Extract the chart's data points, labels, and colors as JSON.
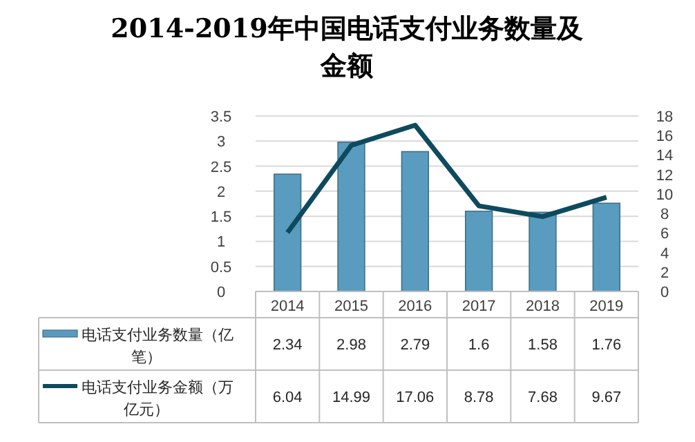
{
  "chart_data": {
    "type": "bar",
    "title": "2014-2019年中国电话支付业务数量及金额",
    "categories": [
      "2014",
      "2015",
      "2016",
      "2017",
      "2018",
      "2019"
    ],
    "series": [
      {
        "name": "电话支付业务数量（亿笔）",
        "color": "#5a9cbf",
        "values": [
          2.34,
          2.98,
          2.79,
          1.6,
          1.58,
          1.76
        ]
      },
      {
        "name": "电话支付业务金额（万亿元）",
        "type": "line",
        "axis": "y2",
        "color": "#0e4a5e",
        "values": [
          6.04,
          14.99,
          17.06,
          8.78,
          7.68,
          9.67
        ]
      }
    ],
    "ylim": [
      0,
      3.5
    ],
    "yticks": [
      0,
      0.5,
      1,
      1.5,
      2,
      2.5,
      3,
      3.5
    ],
    "y2lim": [
      0,
      18
    ],
    "y2ticks": [
      0,
      2,
      4,
      6,
      8,
      10,
      12,
      14,
      16,
      18
    ],
    "grid": "y",
    "legend": "bottom left",
    "data_labels": true,
    "marker": "none",
    "line_style": "solid"
  }
}
